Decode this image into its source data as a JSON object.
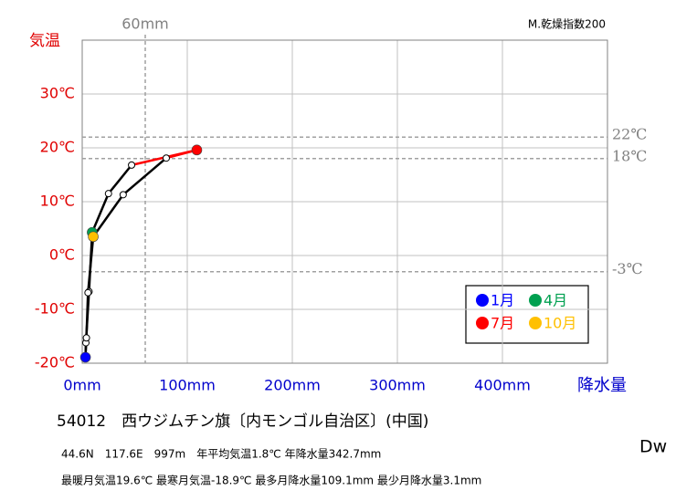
{
  "chart_data": {
    "type": "climograph",
    "y_title": "気温",
    "x_title": "降水量",
    "y_title_color": "#e00000",
    "x_title_color": "#0000cc",
    "x": [
      3.1,
      3.5,
      6.5,
      9.5,
      25,
      47,
      109.1,
      80,
      39,
      10.5,
      5.5,
      4
    ],
    "series": [
      {
        "name": "気温",
        "color": "#000000",
        "values": [
          -18.9,
          -16.2,
          -6.7,
          4.3,
          11.5,
          16.8,
          19.6,
          18.1,
          11.3,
          3.5,
          -6.9,
          -15.3
        ]
      }
    ],
    "highlights": [
      {
        "name": "1月",
        "color": "#0000ff",
        "index": 0
      },
      {
        "name": "4月",
        "color": "#00a050",
        "index": 3
      },
      {
        "name": "7月",
        "color": "#ff0000",
        "index": 6
      },
      {
        "name": "10月",
        "color": "#ffc000",
        "index": 9
      }
    ],
    "xlim": [
      0,
      500
    ],
    "ylim": [
      -20,
      40
    ],
    "xticks": [
      {
        "value": 0,
        "label": "0mm"
      },
      {
        "value": 100,
        "label": "100mm"
      },
      {
        "value": 200,
        "label": "200mm"
      },
      {
        "value": 300,
        "label": "300mm"
      },
      {
        "value": 400,
        "label": "400mm"
      }
    ],
    "yticks": [
      {
        "value": -20,
        "label": "-20℃"
      },
      {
        "value": -10,
        "label": "-10℃"
      },
      {
        "value": 0,
        "label": "0℃"
      },
      {
        "value": 10,
        "label": "10℃"
      },
      {
        "value": 20,
        "label": "20℃"
      },
      {
        "value": 30,
        "label": "30℃"
      }
    ],
    "grid": true,
    "ref_vline": {
      "value": 60,
      "label": "60mm"
    },
    "ref_hlines": [
      {
        "value": 22,
        "label": "22℃"
      },
      {
        "value": 18,
        "label": "18℃"
      },
      {
        "value": -3,
        "label": "-3℃"
      }
    ],
    "dryness_label": "M.乾燥指数200",
    "station": "54012　西ウジムチン旗〔内モンゴル自治区〕(中国)",
    "info_lines": [
      "44.6N　117.6E　997m　年平均気温1.8℃ 年降水量342.7mm",
      "最暖月気温19.6℃ 最寒月気温-18.9℃ 最多月降水量109.1mm 最少月降水量3.1mm"
    ],
    "climate_class": "Dw"
  }
}
